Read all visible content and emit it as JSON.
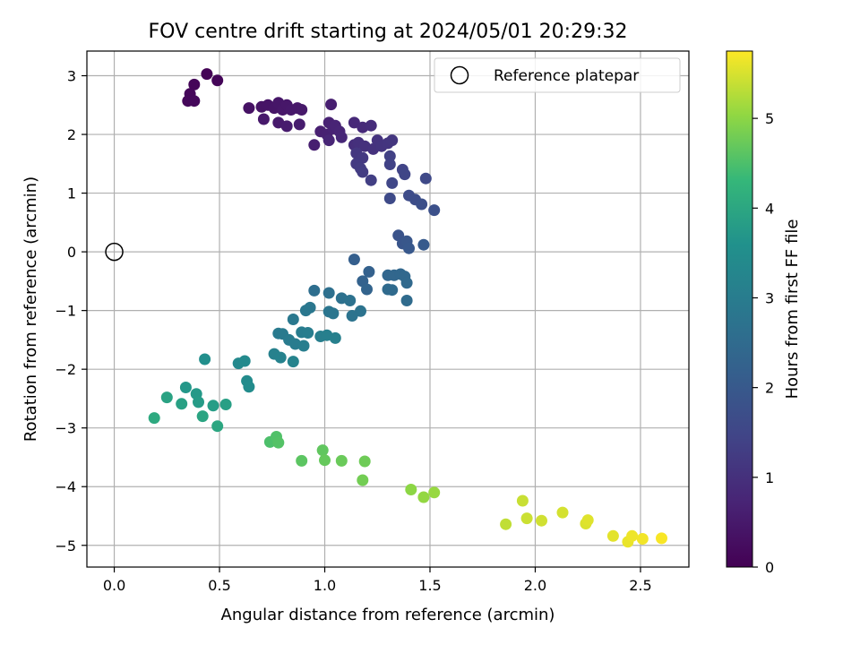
{
  "chart_data": {
    "type": "scatter",
    "title": "FOV centre drift starting at 2024/05/01 20:29:32",
    "xlabel": "Angular distance from reference (arcmin)",
    "ylabel": "Rotation from reference (arcmin)",
    "xlim": [
      -0.13,
      2.73
    ],
    "ylim": [
      -5.37,
      3.42
    ],
    "xticks": [
      0.0,
      0.5,
      1.0,
      1.5,
      2.0,
      2.5
    ],
    "xtick_labels": [
      "0.0",
      "0.5",
      "1.0",
      "1.5",
      "2.0",
      "2.5"
    ],
    "yticks": [
      3,
      2,
      1,
      0,
      -1,
      -2,
      -3,
      -4,
      -5
    ],
    "ytick_labels": [
      "3",
      "2",
      "1",
      "0",
      "−1",
      "−2",
      "−3",
      "−4",
      "−5"
    ],
    "grid": true,
    "legend": {
      "placement": "upper-right",
      "entries": [
        "Reference platepar"
      ]
    },
    "reference_point": {
      "x": 0.0,
      "y": 0.0
    },
    "colorbar": {
      "label": "Hours from first FF file",
      "colormap": "viridis",
      "range": [
        0,
        5.75
      ],
      "ticks": [
        0,
        1,
        2,
        3,
        4,
        5
      ],
      "tick_labels": [
        "0",
        "1",
        "2",
        "3",
        "4",
        "5"
      ]
    },
    "points": [
      [
        0.44,
        3.03,
        0.05
      ],
      [
        0.49,
        2.92,
        0.08
      ],
      [
        0.38,
        2.85,
        0.1
      ],
      [
        0.36,
        2.69,
        0.12
      ],
      [
        0.35,
        2.57,
        0.14
      ],
      [
        0.38,
        2.57,
        0.15
      ],
      [
        0.64,
        2.45,
        0.35
      ],
      [
        0.7,
        2.47,
        0.38
      ],
      [
        0.73,
        2.5,
        0.4
      ],
      [
        0.76,
        2.45,
        0.42
      ],
      [
        0.78,
        2.54,
        0.44
      ],
      [
        0.8,
        2.42,
        0.45
      ],
      [
        0.82,
        2.5,
        0.46
      ],
      [
        0.84,
        2.42,
        0.47
      ],
      [
        0.87,
        2.45,
        0.48
      ],
      [
        0.89,
        2.42,
        0.49
      ],
      [
        0.71,
        2.26,
        0.5
      ],
      [
        0.78,
        2.2,
        0.52
      ],
      [
        0.82,
        2.14,
        0.54
      ],
      [
        0.88,
        2.17,
        0.56
      ],
      [
        1.03,
        2.51,
        0.6
      ],
      [
        0.95,
        1.82,
        0.62
      ],
      [
        0.98,
        2.05,
        0.64
      ],
      [
        1.01,
        2.0,
        0.66
      ],
      [
        1.02,
        2.2,
        0.68
      ],
      [
        1.04,
        2.1,
        0.7
      ],
      [
        1.05,
        2.15,
        0.72
      ],
      [
        1.07,
        2.05,
        0.74
      ],
      [
        1.02,
        1.9,
        0.76
      ],
      [
        1.08,
        1.95,
        0.78
      ],
      [
        1.14,
        2.2,
        0.82
      ],
      [
        1.18,
        2.12,
        0.86
      ],
      [
        1.22,
        2.15,
        0.9
      ],
      [
        1.14,
        1.82,
        0.95
      ],
      [
        1.16,
        1.86,
        0.98
      ],
      [
        1.19,
        1.8,
        1.0
      ],
      [
        1.23,
        1.75,
        1.03
      ],
      [
        1.25,
        1.9,
        1.06
      ],
      [
        1.27,
        1.8,
        1.08
      ],
      [
        1.3,
        1.85,
        1.1
      ],
      [
        1.32,
        1.9,
        1.12
      ],
      [
        1.15,
        1.68,
        1.15
      ],
      [
        1.18,
        1.6,
        1.18
      ],
      [
        1.15,
        1.5,
        1.22
      ],
      [
        1.17,
        1.42,
        1.25
      ],
      [
        1.18,
        1.36,
        1.28
      ],
      [
        1.22,
        1.22,
        1.32
      ],
      [
        1.31,
        1.63,
        1.36
      ],
      [
        1.31,
        1.49,
        1.4
      ],
      [
        1.37,
        1.4,
        1.44
      ],
      [
        1.38,
        1.32,
        1.48
      ],
      [
        1.32,
        1.17,
        1.52
      ],
      [
        1.48,
        1.25,
        1.56
      ],
      [
        1.31,
        0.91,
        1.6
      ],
      [
        1.4,
        0.96,
        1.64
      ],
      [
        1.43,
        0.89,
        1.68
      ],
      [
        1.46,
        0.81,
        1.72
      ],
      [
        1.52,
        0.71,
        1.76
      ],
      [
        1.35,
        0.28,
        1.85
      ],
      [
        1.37,
        0.14,
        1.9
      ],
      [
        1.39,
        0.18,
        1.94
      ],
      [
        1.4,
        0.06,
        1.98
      ],
      [
        1.47,
        0.12,
        2.02
      ],
      [
        1.14,
        -0.13,
        2.15
      ],
      [
        1.21,
        -0.34,
        2.2
      ],
      [
        1.18,
        -0.5,
        2.25
      ],
      [
        1.2,
        -0.64,
        2.3
      ],
      [
        1.3,
        -0.4,
        2.35
      ],
      [
        1.33,
        -0.4,
        2.38
      ],
      [
        1.36,
        -0.38,
        2.4
      ],
      [
        1.38,
        -0.42,
        2.42
      ],
      [
        1.39,
        -0.53,
        2.44
      ],
      [
        1.3,
        -0.64,
        2.46
      ],
      [
        1.32,
        -0.65,
        2.48
      ],
      [
        1.39,
        -0.83,
        2.5
      ],
      [
        0.95,
        -0.66,
        2.6
      ],
      [
        1.02,
        -0.7,
        2.64
      ],
      [
        1.08,
        -0.79,
        2.68
      ],
      [
        1.12,
        -0.83,
        2.7
      ],
      [
        1.17,
        -1.01,
        2.72
      ],
      [
        1.13,
        -1.09,
        2.74
      ],
      [
        1.02,
        -1.02,
        2.78
      ],
      [
        1.04,
        -1.05,
        2.8
      ],
      [
        0.93,
        -0.95,
        2.84
      ],
      [
        0.91,
        -1.0,
        2.86
      ],
      [
        0.85,
        -1.15,
        2.88
      ],
      [
        0.78,
        -1.39,
        2.92
      ],
      [
        0.8,
        -1.4,
        2.94
      ],
      [
        0.83,
        -1.5,
        2.96
      ],
      [
        0.86,
        -1.57,
        2.98
      ],
      [
        0.89,
        -1.37,
        3.0
      ],
      [
        0.92,
        -1.38,
        3.02
      ],
      [
        0.9,
        -1.6,
        3.04
      ],
      [
        0.98,
        -1.44,
        3.06
      ],
      [
        1.01,
        -1.42,
        3.08
      ],
      [
        1.05,
        -1.47,
        3.1
      ],
      [
        0.76,
        -1.74,
        3.14
      ],
      [
        0.79,
        -1.8,
        3.17
      ],
      [
        0.85,
        -1.87,
        3.2
      ],
      [
        0.59,
        -1.9,
        3.35
      ],
      [
        0.62,
        -1.86,
        3.38
      ],
      [
        0.63,
        -2.2,
        3.42
      ],
      [
        0.64,
        -2.3,
        3.45
      ],
      [
        0.43,
        -1.83,
        3.55
      ],
      [
        0.34,
        -2.31,
        3.7
      ],
      [
        0.39,
        -2.42,
        3.74
      ],
      [
        0.4,
        -2.56,
        3.78
      ],
      [
        0.47,
        -2.62,
        3.82
      ],
      [
        0.53,
        -2.6,
        3.85
      ],
      [
        0.32,
        -2.59,
        3.88
      ],
      [
        0.25,
        -2.48,
        3.92
      ],
      [
        0.42,
        -2.8,
        3.96
      ],
      [
        0.49,
        -2.97,
        4.0
      ],
      [
        0.19,
        -2.83,
        4.05
      ],
      [
        0.74,
        -3.24,
        4.5
      ],
      [
        0.77,
        -3.15,
        4.53
      ],
      [
        0.78,
        -3.25,
        4.56
      ],
      [
        0.89,
        -3.56,
        4.62
      ],
      [
        0.99,
        -3.38,
        4.66
      ],
      [
        1.0,
        -3.55,
        4.7
      ],
      [
        1.08,
        -3.56,
        4.73
      ],
      [
        1.19,
        -3.57,
        4.76
      ],
      [
        1.18,
        -3.89,
        4.8
      ],
      [
        1.41,
        -4.05,
        5.0
      ],
      [
        1.47,
        -4.18,
        5.05
      ],
      [
        1.52,
        -4.1,
        5.08
      ],
      [
        1.86,
        -4.64,
        5.35
      ],
      [
        1.94,
        -4.24,
        5.4
      ],
      [
        1.96,
        -4.54,
        5.42
      ],
      [
        2.03,
        -4.58,
        5.45
      ],
      [
        2.13,
        -4.44,
        5.48
      ],
      [
        2.24,
        -4.63,
        5.52
      ],
      [
        2.25,
        -4.57,
        5.55
      ],
      [
        2.37,
        -4.84,
        5.58
      ],
      [
        2.44,
        -4.94,
        5.62
      ],
      [
        2.46,
        -4.84,
        5.65
      ],
      [
        2.51,
        -4.89,
        5.68
      ],
      [
        2.6,
        -4.88,
        5.72
      ]
    ]
  }
}
